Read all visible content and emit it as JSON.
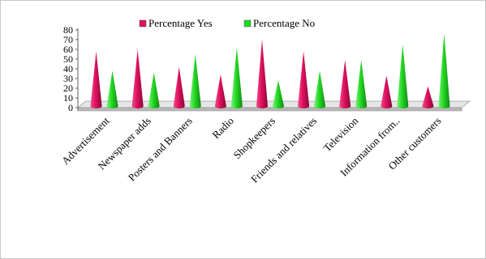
{
  "chart_data": {
    "type": "bar",
    "title": "",
    "xlabel": "",
    "ylabel": "",
    "ylim": [
      0,
      80
    ],
    "y_ticks": [
      "0",
      "10",
      "20",
      "30",
      "40",
      "50",
      "60",
      "70",
      "80"
    ],
    "categories": [
      "Advertisement",
      "Newspaper adds",
      "Posters and Banners",
      "Radio",
      "Shopkeepers",
      "Friends and relatives",
      "Television",
      "Information from..",
      "Other customers"
    ],
    "series": [
      {
        "name": "Percentage Yes",
        "color": "#e0105e",
        "values": [
          58,
          60,
          42,
          34,
          70,
          58,
          49,
          33,
          22
        ]
      },
      {
        "name": "Percentage No",
        "color": "#22d822",
        "values": [
          38,
          36,
          55,
          62,
          28,
          38,
          49,
          65,
          76
        ]
      }
    ],
    "grid": false,
    "legend_position": "top-center",
    "style": "3d-cone"
  }
}
